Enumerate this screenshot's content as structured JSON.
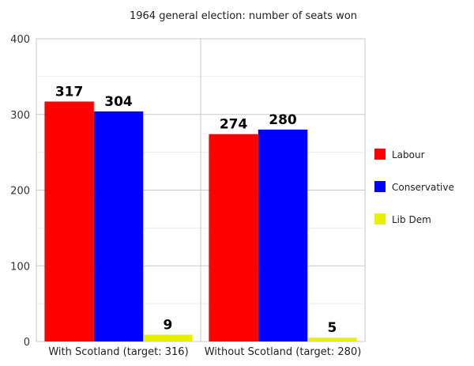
{
  "chart_data": {
    "type": "bar",
    "title": "1964 general election: number of seats won",
    "categories": [
      "With Scotland (target: 316)",
      "Without Scotland (target: 280)"
    ],
    "series": [
      {
        "name": "Labour",
        "color": "#ff0000",
        "values": [
          317,
          274
        ]
      },
      {
        "name": "Conservative",
        "color": "#0000ff",
        "values": [
          304,
          280
        ]
      },
      {
        "name": "Lib Dem",
        "color": "#e6f000",
        "values": [
          9,
          5
        ]
      }
    ],
    "ylim": [
      0,
      400
    ],
    "yticks": [
      "0",
      "100",
      "200",
      "300",
      "400"
    ],
    "grid": true,
    "legend": "right"
  }
}
